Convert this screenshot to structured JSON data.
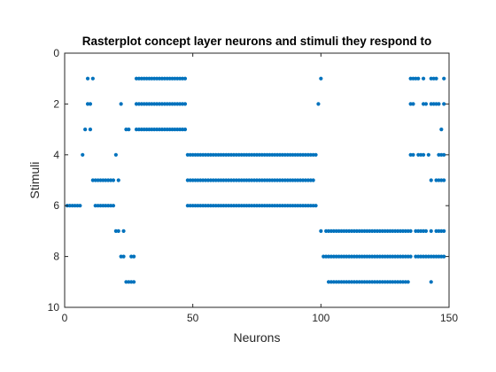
{
  "chart_data": {
    "type": "scatter",
    "title": "Rasterplot concept layer neurons and stimuli they respond to",
    "xlabel": "Neurons",
    "ylabel": "Stimuli",
    "xlim": [
      0,
      150
    ],
    "ylim": [
      0,
      10
    ],
    "y_reversed": true,
    "grid": false,
    "legend": "none",
    "x_ticks": [
      "0",
      "50",
      "100",
      "150"
    ],
    "y_ticks": [
      "0",
      "2",
      "4",
      "6",
      "8",
      "10"
    ],
    "marker_color": "#0072BD",
    "rows": [
      {
        "y": 1,
        "x": [
          9,
          11,
          28,
          29,
          30,
          31,
          32,
          33,
          34,
          35,
          36,
          37,
          38,
          39,
          40,
          41,
          42,
          43,
          44,
          45,
          46,
          47,
          100,
          135,
          136,
          137,
          138,
          140,
          143,
          144,
          145,
          148
        ]
      },
      {
        "y": 2,
        "x": [
          9,
          10,
          22,
          28,
          29,
          30,
          31,
          32,
          33,
          34,
          35,
          36,
          37,
          38,
          39,
          40,
          41,
          42,
          43,
          44,
          45,
          46,
          47,
          99,
          135,
          136,
          140,
          141,
          143,
          144,
          145,
          146,
          148
        ]
      },
      {
        "y": 3,
        "x": [
          8,
          10,
          24,
          25,
          28,
          29,
          30,
          31,
          32,
          33,
          34,
          35,
          36,
          37,
          38,
          39,
          40,
          41,
          42,
          43,
          44,
          45,
          46,
          47,
          147
        ]
      },
      {
        "y": 4,
        "x": [
          7,
          20,
          48,
          49,
          50,
          51,
          52,
          53,
          54,
          55,
          56,
          57,
          58,
          59,
          60,
          61,
          62,
          63,
          64,
          65,
          66,
          67,
          68,
          69,
          70,
          71,
          72,
          73,
          74,
          75,
          76,
          77,
          78,
          79,
          80,
          81,
          82,
          83,
          84,
          85,
          86,
          87,
          88,
          89,
          90,
          91,
          92,
          93,
          94,
          95,
          96,
          97,
          98,
          135,
          136,
          138,
          139,
          140,
          142,
          146,
          147,
          148
        ]
      },
      {
        "y": 5,
        "x": [
          11,
          12,
          13,
          14,
          15,
          16,
          17,
          18,
          19,
          21,
          48,
          49,
          50,
          51,
          52,
          53,
          54,
          55,
          56,
          57,
          58,
          59,
          60,
          61,
          62,
          63,
          64,
          65,
          66,
          67,
          68,
          69,
          70,
          71,
          72,
          73,
          74,
          75,
          76,
          77,
          78,
          79,
          80,
          81,
          82,
          83,
          84,
          85,
          86,
          87,
          88,
          89,
          90,
          91,
          92,
          93,
          94,
          95,
          96,
          97,
          143,
          145,
          146,
          147,
          148
        ]
      },
      {
        "y": 6,
        "x": [
          1,
          2,
          3,
          4,
          5,
          6,
          12,
          13,
          14,
          15,
          16,
          17,
          18,
          19,
          48,
          49,
          50,
          51,
          52,
          53,
          54,
          55,
          56,
          57,
          58,
          59,
          60,
          61,
          62,
          63,
          64,
          65,
          66,
          67,
          68,
          69,
          70,
          71,
          72,
          73,
          74,
          75,
          76,
          77,
          78,
          79,
          80,
          81,
          82,
          83,
          84,
          85,
          86,
          87,
          88,
          89,
          90,
          91,
          92,
          93,
          94,
          95,
          96,
          97,
          98
        ]
      },
      {
        "y": 7,
        "x": [
          20,
          21,
          23,
          100,
          102,
          103,
          104,
          105,
          106,
          107,
          108,
          109,
          110,
          111,
          112,
          113,
          114,
          115,
          116,
          117,
          118,
          119,
          120,
          121,
          122,
          123,
          124,
          125,
          126,
          127,
          128,
          129,
          130,
          131,
          132,
          133,
          134,
          135,
          137,
          138,
          139,
          140,
          141,
          143,
          145,
          146,
          147,
          148
        ]
      },
      {
        "y": 8,
        "x": [
          22,
          23,
          26,
          27,
          101,
          102,
          103,
          104,
          105,
          106,
          107,
          108,
          109,
          110,
          111,
          112,
          113,
          114,
          115,
          116,
          117,
          118,
          119,
          120,
          121,
          122,
          123,
          124,
          125,
          126,
          127,
          128,
          129,
          130,
          131,
          132,
          133,
          134,
          135,
          137,
          138,
          139,
          140,
          141,
          142,
          143,
          144,
          145,
          146,
          147,
          148
        ]
      },
      {
        "y": 9,
        "x": [
          24,
          25,
          26,
          27,
          103,
          104,
          105,
          106,
          107,
          108,
          109,
          110,
          111,
          112,
          113,
          114,
          115,
          116,
          117,
          118,
          119,
          120,
          121,
          122,
          123,
          124,
          125,
          126,
          127,
          128,
          129,
          130,
          131,
          132,
          133,
          134,
          143
        ]
      }
    ]
  }
}
